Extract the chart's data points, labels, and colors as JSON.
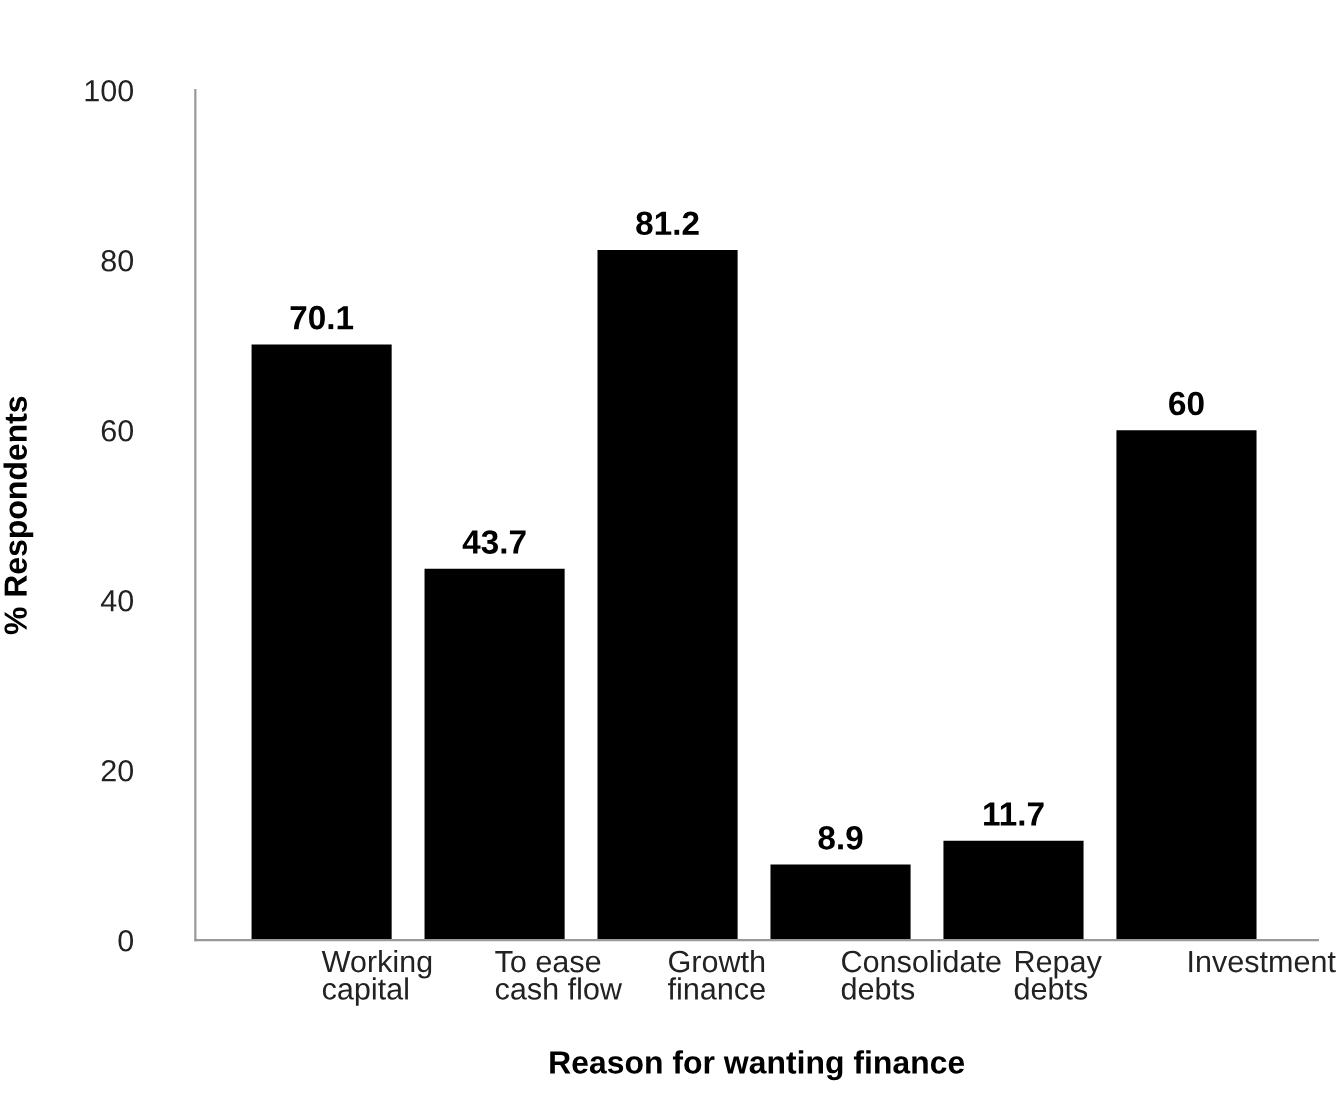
{
  "chart_data": {
    "type": "bar",
    "xlabel": "Reason for wanting finance",
    "ylabel": "% Respondents",
    "categories": [
      "Working\ncapital",
      "To ease\ncash flow",
      "Growth\nfinance",
      "Consolidate\ndebts",
      "Repay\ndebts",
      "Investment"
    ],
    "values": [
      70.1,
      43.7,
      81.2,
      8.9,
      11.7,
      60
    ],
    "color": "#000000",
    "ylim": [
      0,
      100
    ],
    "yticks": [
      0,
      20,
      40,
      60,
      80,
      100
    ],
    "data_labels": true,
    "grid": false,
    "legend": false
  }
}
